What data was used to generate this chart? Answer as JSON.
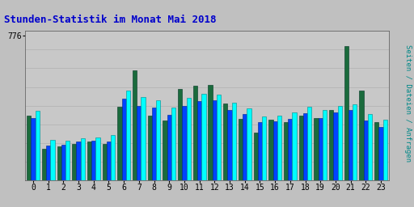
{
  "title": "Stunden-Statistik im Monat Mai 2018",
  "title_color": "#0000CC",
  "title_fontsize": 9,
  "ylabel_right": "Seiten / Dateien / Anfragen",
  "ylabel_right_color": "#008888",
  "hours": [
    0,
    1,
    2,
    3,
    4,
    5,
    6,
    7,
    8,
    9,
    10,
    11,
    12,
    13,
    14,
    15,
    16,
    17,
    18,
    19,
    20,
    21,
    22,
    23
  ],
  "seiten": [
    370,
    215,
    210,
    225,
    230,
    240,
    480,
    445,
    430,
    390,
    440,
    465,
    460,
    415,
    385,
    340,
    345,
    365,
    395,
    375,
    400,
    405,
    355,
    325
  ],
  "dateien": [
    335,
    185,
    190,
    205,
    210,
    205,
    435,
    400,
    390,
    350,
    400,
    425,
    430,
    375,
    355,
    310,
    315,
    330,
    360,
    335,
    365,
    375,
    320,
    285
  ],
  "anfragen": [
    345,
    170,
    180,
    195,
    205,
    195,
    395,
    590,
    345,
    320,
    490,
    505,
    510,
    410,
    330,
    255,
    325,
    310,
    345,
    335,
    375,
    720,
    480,
    310
  ],
  "color_seiten": "#00FFFF",
  "color_dateien": "#0044FF",
  "color_anfragen": "#1A6B3C",
  "background_plot": "#C8C8C8",
  "background_fig": "#C0C0C0",
  "ylim": [
    0,
    800
  ],
  "ytick_val": 776,
  "grid_color": "#B0B0B0",
  "bar_width": 0.28
}
